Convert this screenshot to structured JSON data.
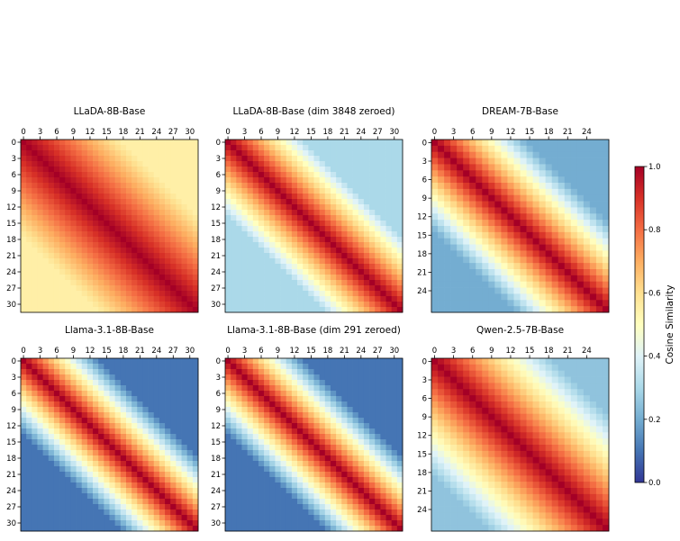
{
  "chart_data": {
    "type": "heatmap",
    "colormap": "RdYlBu_r",
    "colorbar": {
      "label": "Cosine Similarity",
      "ticks": [
        "0.0",
        "0.2",
        "0.4",
        "0.6",
        "0.8",
        "1.0"
      ],
      "range": [
        0.0,
        1.0
      ]
    },
    "panels": [
      {
        "title": "LLaDA-8B-Base",
        "layers": 32,
        "tick_labels": [
          "0",
          "3",
          "6",
          "9",
          "12",
          "15",
          "18",
          "21",
          "24",
          "27",
          "30"
        ],
        "pattern": {
          "diagonal": 1.0,
          "decay_per_layer": 0.025,
          "min": 0.55
        }
      },
      {
        "title": "LLaDA-8B-Base (dim 3848 zeroed)",
        "layers": 32,
        "tick_labels": [
          "0",
          "3",
          "6",
          "9",
          "12",
          "15",
          "18",
          "21",
          "24",
          "27",
          "30"
        ],
        "pattern": {
          "diagonal": 1.0,
          "decay_per_layer": 0.05,
          "min": 0.3
        }
      },
      {
        "title": "DREAM-7B-Base",
        "layers": 28,
        "tick_labels": [
          "0",
          "3",
          "6",
          "9",
          "12",
          "15",
          "18",
          "21",
          "24"
        ],
        "pattern": {
          "diagonal": 1.0,
          "decay_per_layer": 0.055,
          "min": 0.2
        }
      },
      {
        "title": "Llama-3.1-8B-Base",
        "layers": 32,
        "tick_labels": [
          "0",
          "3",
          "6",
          "9",
          "12",
          "15",
          "18",
          "21",
          "24",
          "27",
          "30"
        ],
        "pattern": {
          "diagonal": 1.0,
          "decay_per_layer": 0.065,
          "min": 0.1
        }
      },
      {
        "title": "Llama-3.1-8B-Base (dim 291 zeroed)",
        "layers": 32,
        "tick_labels": [
          "0",
          "3",
          "6",
          "9",
          "12",
          "15",
          "18",
          "21",
          "24",
          "27",
          "30"
        ],
        "pattern": {
          "diagonal": 1.0,
          "decay_per_layer": 0.065,
          "min": 0.1
        }
      },
      {
        "title": "Qwen-2.5-7B-Base",
        "layers": 28,
        "tick_labels": [
          "0",
          "3",
          "6",
          "9",
          "12",
          "15",
          "18",
          "21",
          "24"
        ],
        "pattern": {
          "diagonal": 1.0,
          "decay_per_layer": 0.04,
          "min": 0.25
        }
      }
    ]
  }
}
